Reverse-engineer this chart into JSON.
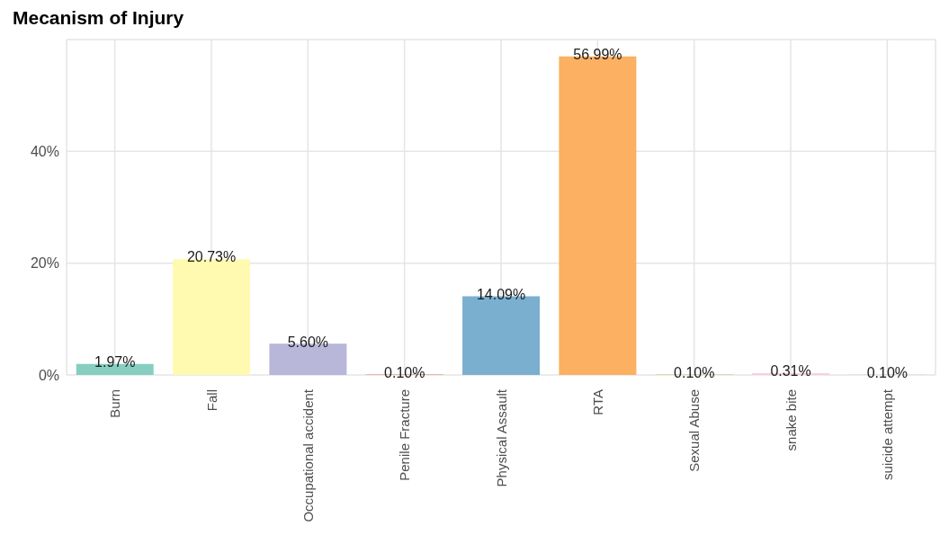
{
  "chart_data": {
    "type": "bar",
    "title": "Mecanism of Injury",
    "categories": [
      "Burn",
      "Fall",
      "Occupational accident",
      "Penile Fracture",
      "Physical Assault",
      "RTA",
      "Sexual Abuse",
      "snake bite",
      "suicide attempt"
    ],
    "values": [
      1.97,
      20.73,
      5.6,
      0.1,
      14.09,
      56.99,
      0.1,
      0.31,
      0.1
    ],
    "value_labels": [
      "1.97%",
      "20.73%",
      "5.60%",
      "0.10%",
      "14.09%",
      "56.99%",
      "0.10%",
      "0.31%",
      "0.10%"
    ],
    "colors": [
      "#86cfc0",
      "#fffab0",
      "#b8b6d9",
      "#f08070",
      "#7aafd0",
      "#fbb062",
      "#b3de69",
      "#fccde5",
      "#d9d9d9"
    ],
    "ylim": [
      0,
      60
    ],
    "yticks": [
      {
        "value": 0,
        "label": "0%"
      },
      {
        "value": 20,
        "label": "20%"
      },
      {
        "value": 40,
        "label": "40%"
      }
    ],
    "grid": true
  }
}
